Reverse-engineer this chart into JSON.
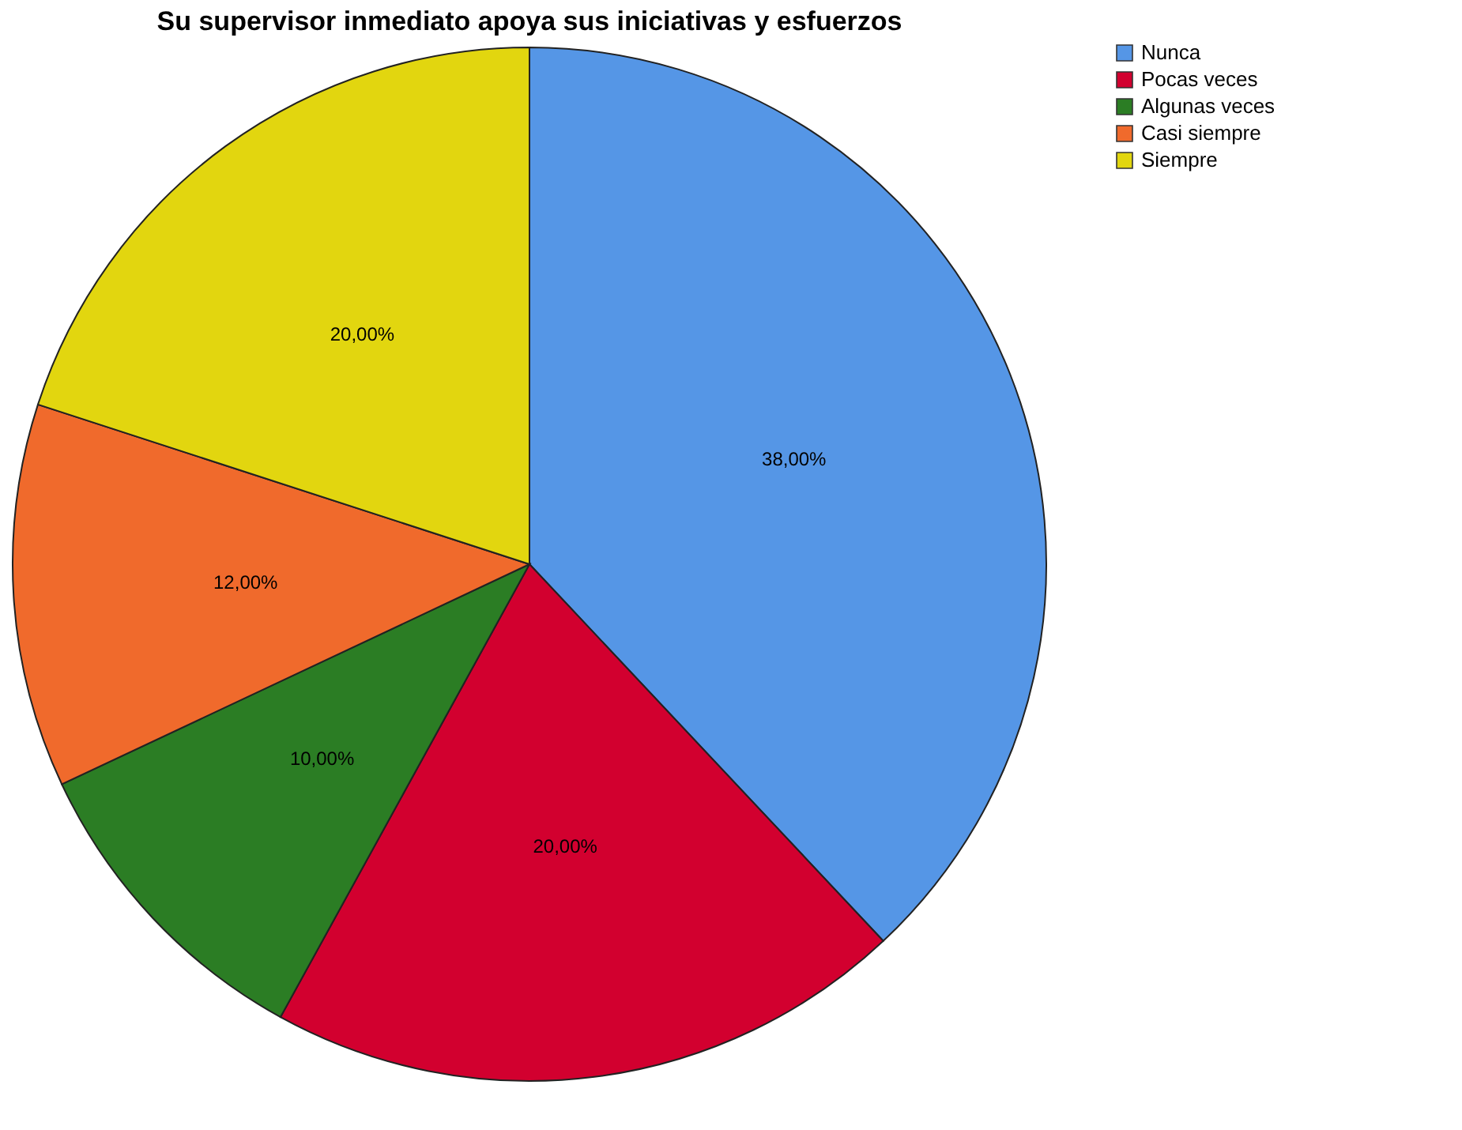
{
  "chart_data": {
    "type": "pie",
    "title": "Su supervisor inmediato apoya sus iniciativas y esfuerzos",
    "categories": [
      "Nunca",
      "Pocas veces",
      "Algunas veces",
      "Casi siempre",
      "Siempre"
    ],
    "values": [
      38,
      20,
      10,
      12,
      20
    ],
    "value_labels": [
      "38,00%",
      "20,00%",
      "10,00%",
      "12,00%",
      "20,00%"
    ],
    "colors": [
      "#5596e6",
      "#d2002f",
      "#2b7d24",
      "#f06a2c",
      "#e2d60f"
    ],
    "legend": "top right"
  }
}
